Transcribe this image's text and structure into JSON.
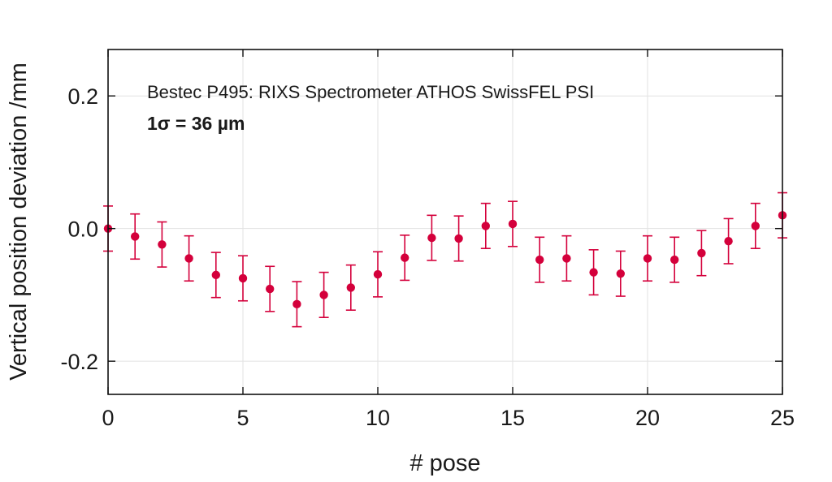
{
  "chart_data": {
    "type": "scatter",
    "title": "Bestec P495: RIXS Spectrometer ATHOS SwissFEL PSI",
    "annotation": "1σ = 36 µm",
    "xlabel": "# pose",
    "ylabel": "Vertical position deviation /mm",
    "xlim": [
      0,
      25
    ],
    "ylim": [
      -0.25,
      0.27
    ],
    "x_ticks": [
      0,
      5,
      10,
      15,
      20,
      25
    ],
    "x_tick_labels": [
      "0",
      "5",
      "10",
      "15",
      "20",
      "25"
    ],
    "y_ticks": [
      -0.2,
      0.0,
      0.2
    ],
    "y_tick_labels": [
      "-0.2",
      "0.0",
      "0.2"
    ],
    "grid": true,
    "marker_color": "#d4003b",
    "error_bar": 0.034,
    "series": [
      {
        "name": "Vertical position deviation",
        "x": [
          0,
          1,
          2,
          3,
          4,
          5,
          6,
          7,
          8,
          9,
          10,
          11,
          12,
          13,
          14,
          15,
          16,
          17,
          18,
          19,
          20,
          21,
          22,
          23,
          24,
          25
        ],
        "y": [
          0.0,
          -0.012,
          -0.024,
          -0.045,
          -0.07,
          -0.075,
          -0.091,
          -0.114,
          -0.1,
          -0.089,
          -0.069,
          -0.044,
          -0.014,
          -0.015,
          0.004,
          0.007,
          -0.047,
          -0.045,
          -0.066,
          -0.068,
          -0.045,
          -0.047,
          -0.037,
          -0.019,
          0.004,
          0.02
        ]
      }
    ]
  }
}
